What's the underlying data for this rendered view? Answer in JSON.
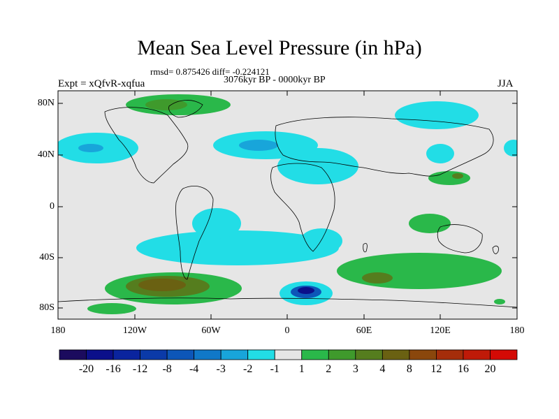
{
  "title": "Mean Sea Level Pressure (in hPa)",
  "stats": "rmsd= 0.875426 diff= -0.224121",
  "period": "3076kyr BP - 0000kyr BP",
  "experiment": "Expt = xQfvR-xqfua",
  "season": "JJA",
  "y_axis_labels": [
    "80N",
    "40N",
    "0",
    "40S",
    "80S"
  ],
  "x_axis_labels": [
    "180",
    "120W",
    "60W",
    "0",
    "60E",
    "120E",
    "180"
  ],
  "colorbar": {
    "labels": [
      "-20",
      "-16",
      "-12",
      "-8",
      "-4",
      "-3",
      "-2",
      "-1",
      "1",
      "2",
      "3",
      "4",
      "8",
      "12",
      "16",
      "20"
    ],
    "colors": [
      "#1b0b5e",
      "#0b0f8a",
      "#0a249e",
      "#0b3aa8",
      "#0d56b8",
      "#1078c8",
      "#18a5da",
      "#22dde6",
      "#e6e6e6",
      "#2ab84a",
      "#3f9a2c",
      "#557d1e",
      "#6a6112",
      "#8a470c",
      "#a52d0a",
      "#bf1a08",
      "#d40a05"
    ]
  },
  "colors": {
    "background": "#e6e6e6",
    "negative_light": "#22dde6",
    "negative_mid": "#18a5da",
    "negative_strong": "#0b3aa8",
    "positive_light": "#2ab84a",
    "positive_mid": "#3f9a2c",
    "positive_strong": "#6a6112"
  }
}
